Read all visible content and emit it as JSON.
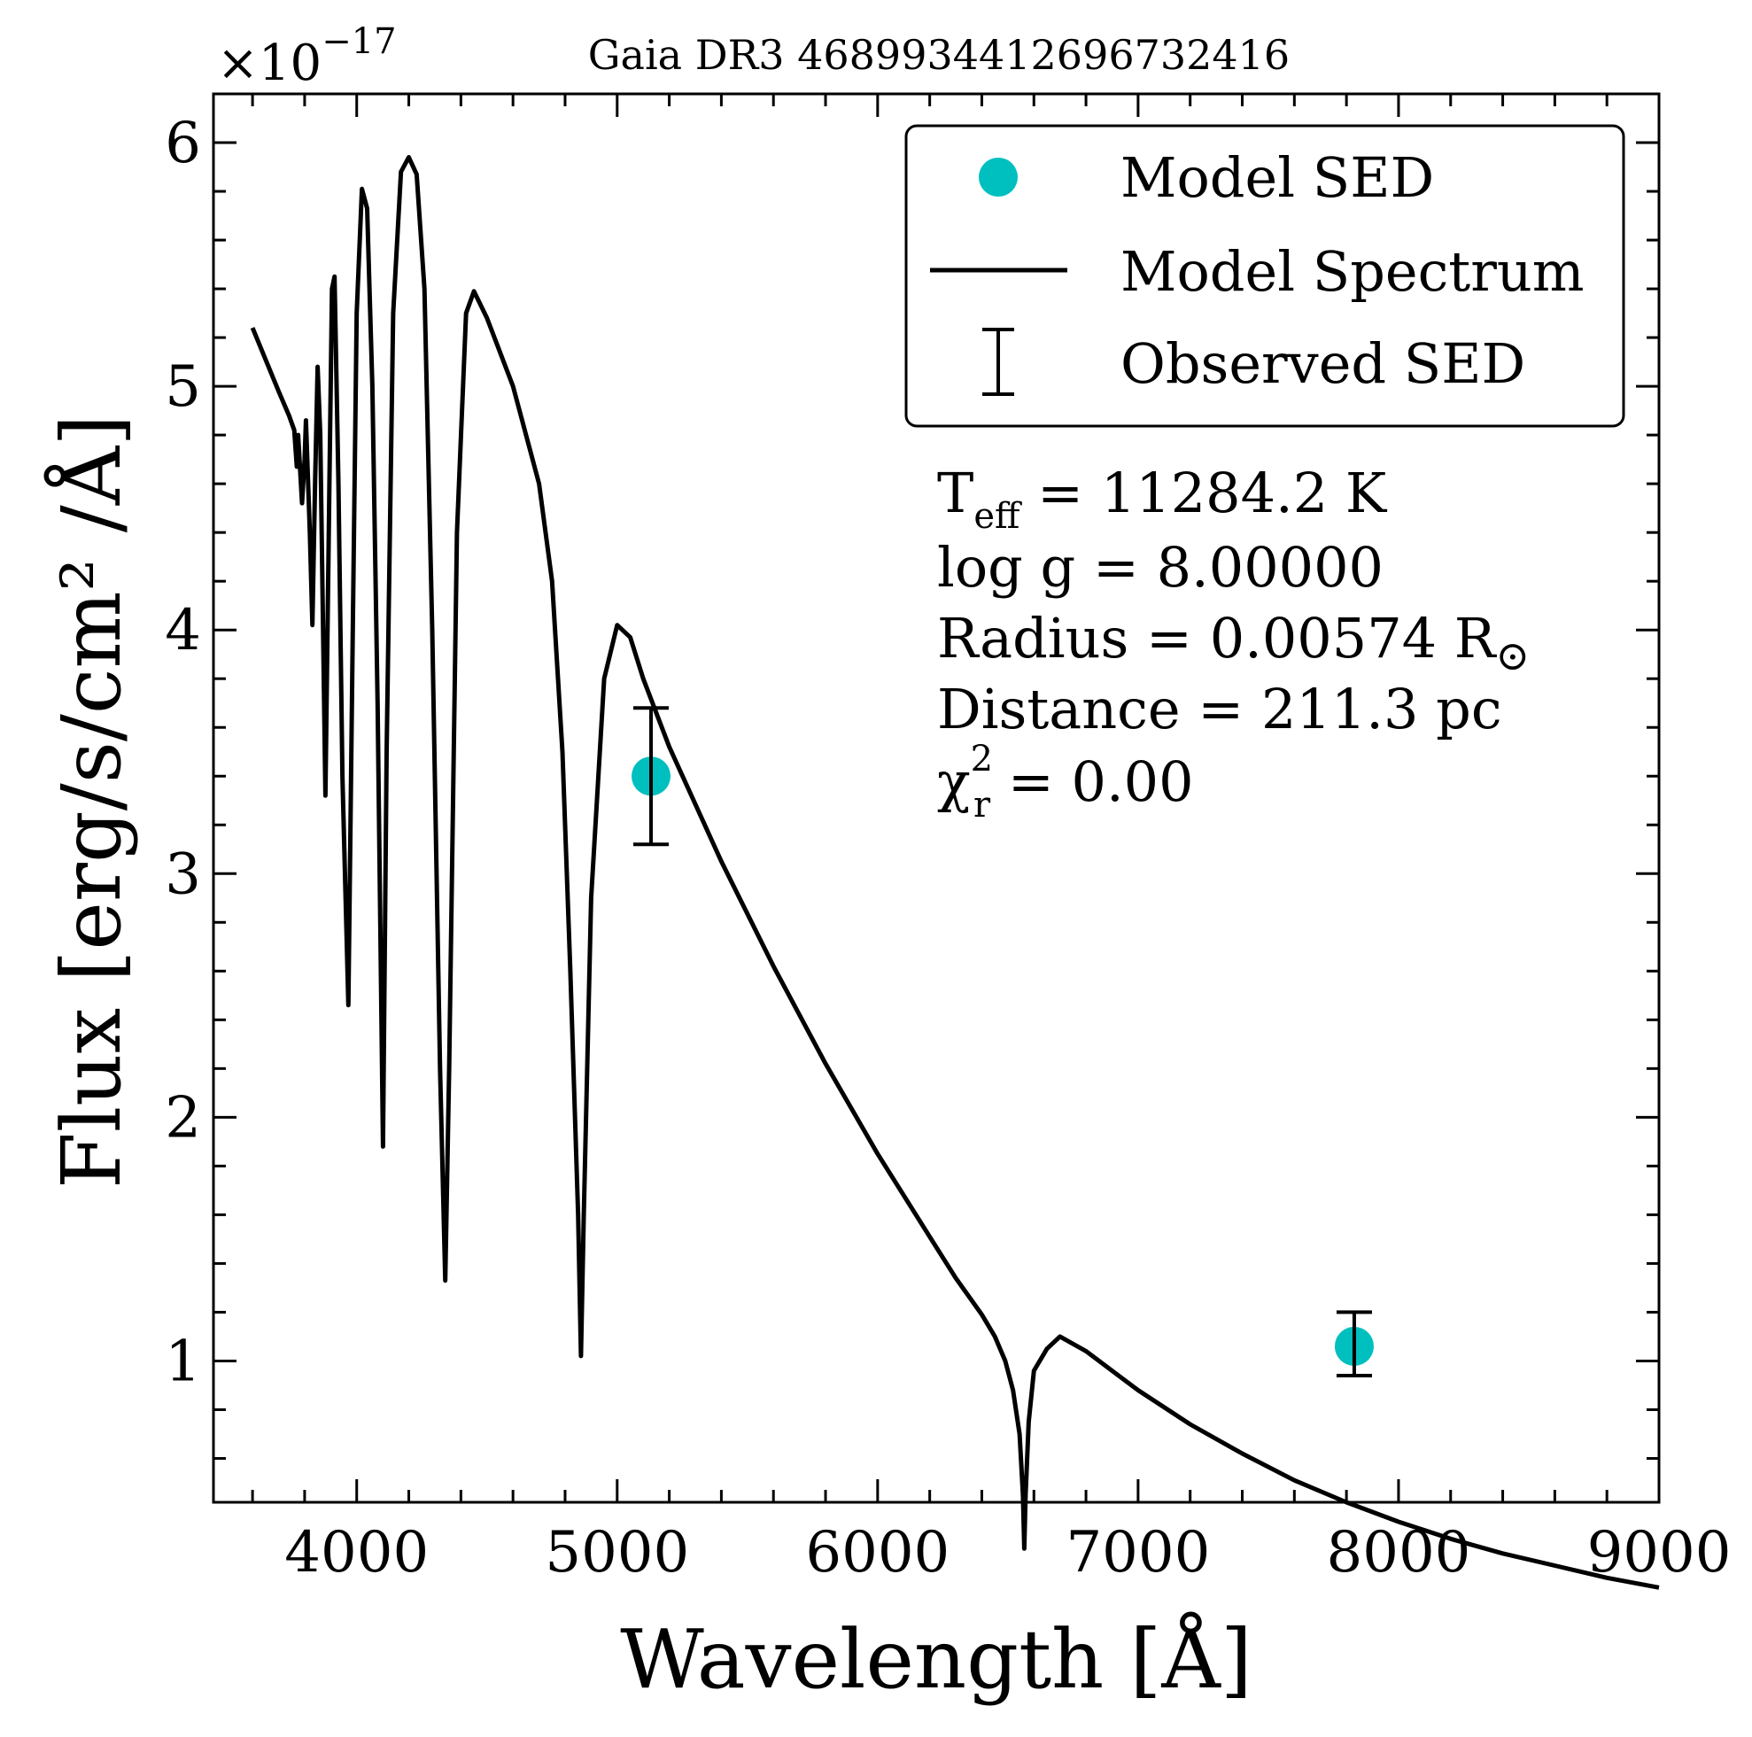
{
  "chart_data": {
    "type": "line",
    "title": "Gaia DR3 4689934412696732416",
    "xlabel": "Wavelength [Å]",
    "ylabel": "Flux [erg/s/cm² /Å]",
    "y_multiplier": "×10",
    "y_multiplier_exponent": "−17",
    "xlim": [
      3450,
      9000
    ],
    "ylim": [
      0.42,
      6.2
    ],
    "x_ticks": [
      4000,
      5000,
      6000,
      7000,
      8000,
      9000
    ],
    "x_tick_labels": [
      "4000",
      "5000",
      "6000",
      "7000",
      "8000",
      "9000"
    ],
    "y_ticks": [
      1,
      2,
      3,
      4,
      5,
      6
    ],
    "y_tick_labels": [
      "1",
      "2",
      "3",
      "4",
      "5",
      "6"
    ],
    "grid": false,
    "legend_position": "top-right",
    "legend": [
      {
        "label": "Model SED",
        "marker": "circle",
        "color": "#00BFBF"
      },
      {
        "label": "Model Spectrum",
        "marker": "line",
        "color": "#000000"
      },
      {
        "label": "Observed SED",
        "marker": "errorbar",
        "color": "#000000"
      }
    ],
    "series": [
      {
        "name": "Model Spectrum",
        "color": "#000000",
        "points": [
          [
            3600,
            5.24
          ],
          [
            3700,
            4.98
          ],
          [
            3740,
            4.88
          ],
          [
            3760,
            4.82
          ],
          [
            3770,
            4.67
          ],
          [
            3775,
            4.8
          ],
          [
            3790,
            4.52
          ],
          [
            3800,
            4.7
          ],
          [
            3805,
            4.86
          ],
          [
            3820,
            4.4
          ],
          [
            3830,
            4.02
          ],
          [
            3840,
            4.6
          ],
          [
            3850,
            5.08
          ],
          [
            3860,
            4.8
          ],
          [
            3880,
            3.32
          ],
          [
            3895,
            4.6
          ],
          [
            3905,
            5.4
          ],
          [
            3915,
            5.45
          ],
          [
            3930,
            4.6
          ],
          [
            3945,
            3.4
          ],
          [
            3968,
            2.46
          ],
          [
            3985,
            4.0
          ],
          [
            4000,
            5.3
          ],
          [
            4020,
            5.81
          ],
          [
            4040,
            5.73
          ],
          [
            4060,
            5.0
          ],
          [
            4080,
            3.7
          ],
          [
            4101,
            1.88
          ],
          [
            4115,
            3.5
          ],
          [
            4140,
            5.3
          ],
          [
            4170,
            5.88
          ],
          [
            4200,
            5.94
          ],
          [
            4230,
            5.87
          ],
          [
            4260,
            5.4
          ],
          [
            4290,
            4.0
          ],
          [
            4320,
            2.2
          ],
          [
            4340,
            1.33
          ],
          [
            4355,
            2.2
          ],
          [
            4385,
            4.4
          ],
          [
            4420,
            5.3
          ],
          [
            4450,
            5.39
          ],
          [
            4500,
            5.28
          ],
          [
            4600,
            5.0
          ],
          [
            4700,
            4.6
          ],
          [
            4750,
            4.2
          ],
          [
            4790,
            3.5
          ],
          [
            4820,
            2.6
          ],
          [
            4850,
            1.6
          ],
          [
            4861,
            1.02
          ],
          [
            4872,
            1.6
          ],
          [
            4900,
            2.9
          ],
          [
            4950,
            3.8
          ],
          [
            5000,
            4.02
          ],
          [
            5050,
            3.97
          ],
          [
            5100,
            3.8
          ],
          [
            5200,
            3.52
          ],
          [
            5400,
            3.05
          ],
          [
            5600,
            2.62
          ],
          [
            5800,
            2.22
          ],
          [
            6000,
            1.85
          ],
          [
            6200,
            1.51
          ],
          [
            6300,
            1.34
          ],
          [
            6400,
            1.19
          ],
          [
            6450,
            1.1
          ],
          [
            6490,
            1.0
          ],
          [
            6520,
            0.88
          ],
          [
            6545,
            0.7
          ],
          [
            6558,
            0.45
          ],
          [
            6563,
            0.23
          ],
          [
            6568,
            0.45
          ],
          [
            6580,
            0.75
          ],
          [
            6600,
            0.96
          ],
          [
            6650,
            1.05
          ],
          [
            6700,
            1.1
          ],
          [
            6800,
            1.04
          ],
          [
            7000,
            0.88
          ],
          [
            7200,
            0.74
          ],
          [
            7400,
            0.62
          ],
          [
            7600,
            0.51
          ],
          [
            7800,
            0.42
          ],
          [
            8000,
            0.34
          ],
          [
            8200,
            0.27
          ],
          [
            8400,
            0.21
          ],
          [
            8600,
            0.16
          ],
          [
            8800,
            0.11
          ],
          [
            9000,
            0.07
          ]
        ]
      },
      {
        "name": "Model SED",
        "color": "#00BFBF",
        "points": [
          [
            5130,
            3.4
          ],
          [
            7830,
            1.06
          ]
        ]
      },
      {
        "name": "Observed SED",
        "color": "#000000",
        "points": [
          [
            5130,
            3.4,
            0.28
          ],
          [
            7830,
            1.07,
            0.13
          ]
        ]
      }
    ],
    "annotations": [
      {
        "main": "T",
        "sub": "eff",
        "rest": " = 11284.2 K"
      },
      {
        "main": "log g = 8.00000"
      },
      {
        "main": "Radius = 0.00574 R",
        "sun_symbol": "⊙"
      },
      {
        "main": "Distance = 211.3 pc"
      },
      {
        "main": "χ",
        "sup": "2",
        "sub": "r",
        "rest": " = 0.00"
      }
    ]
  }
}
